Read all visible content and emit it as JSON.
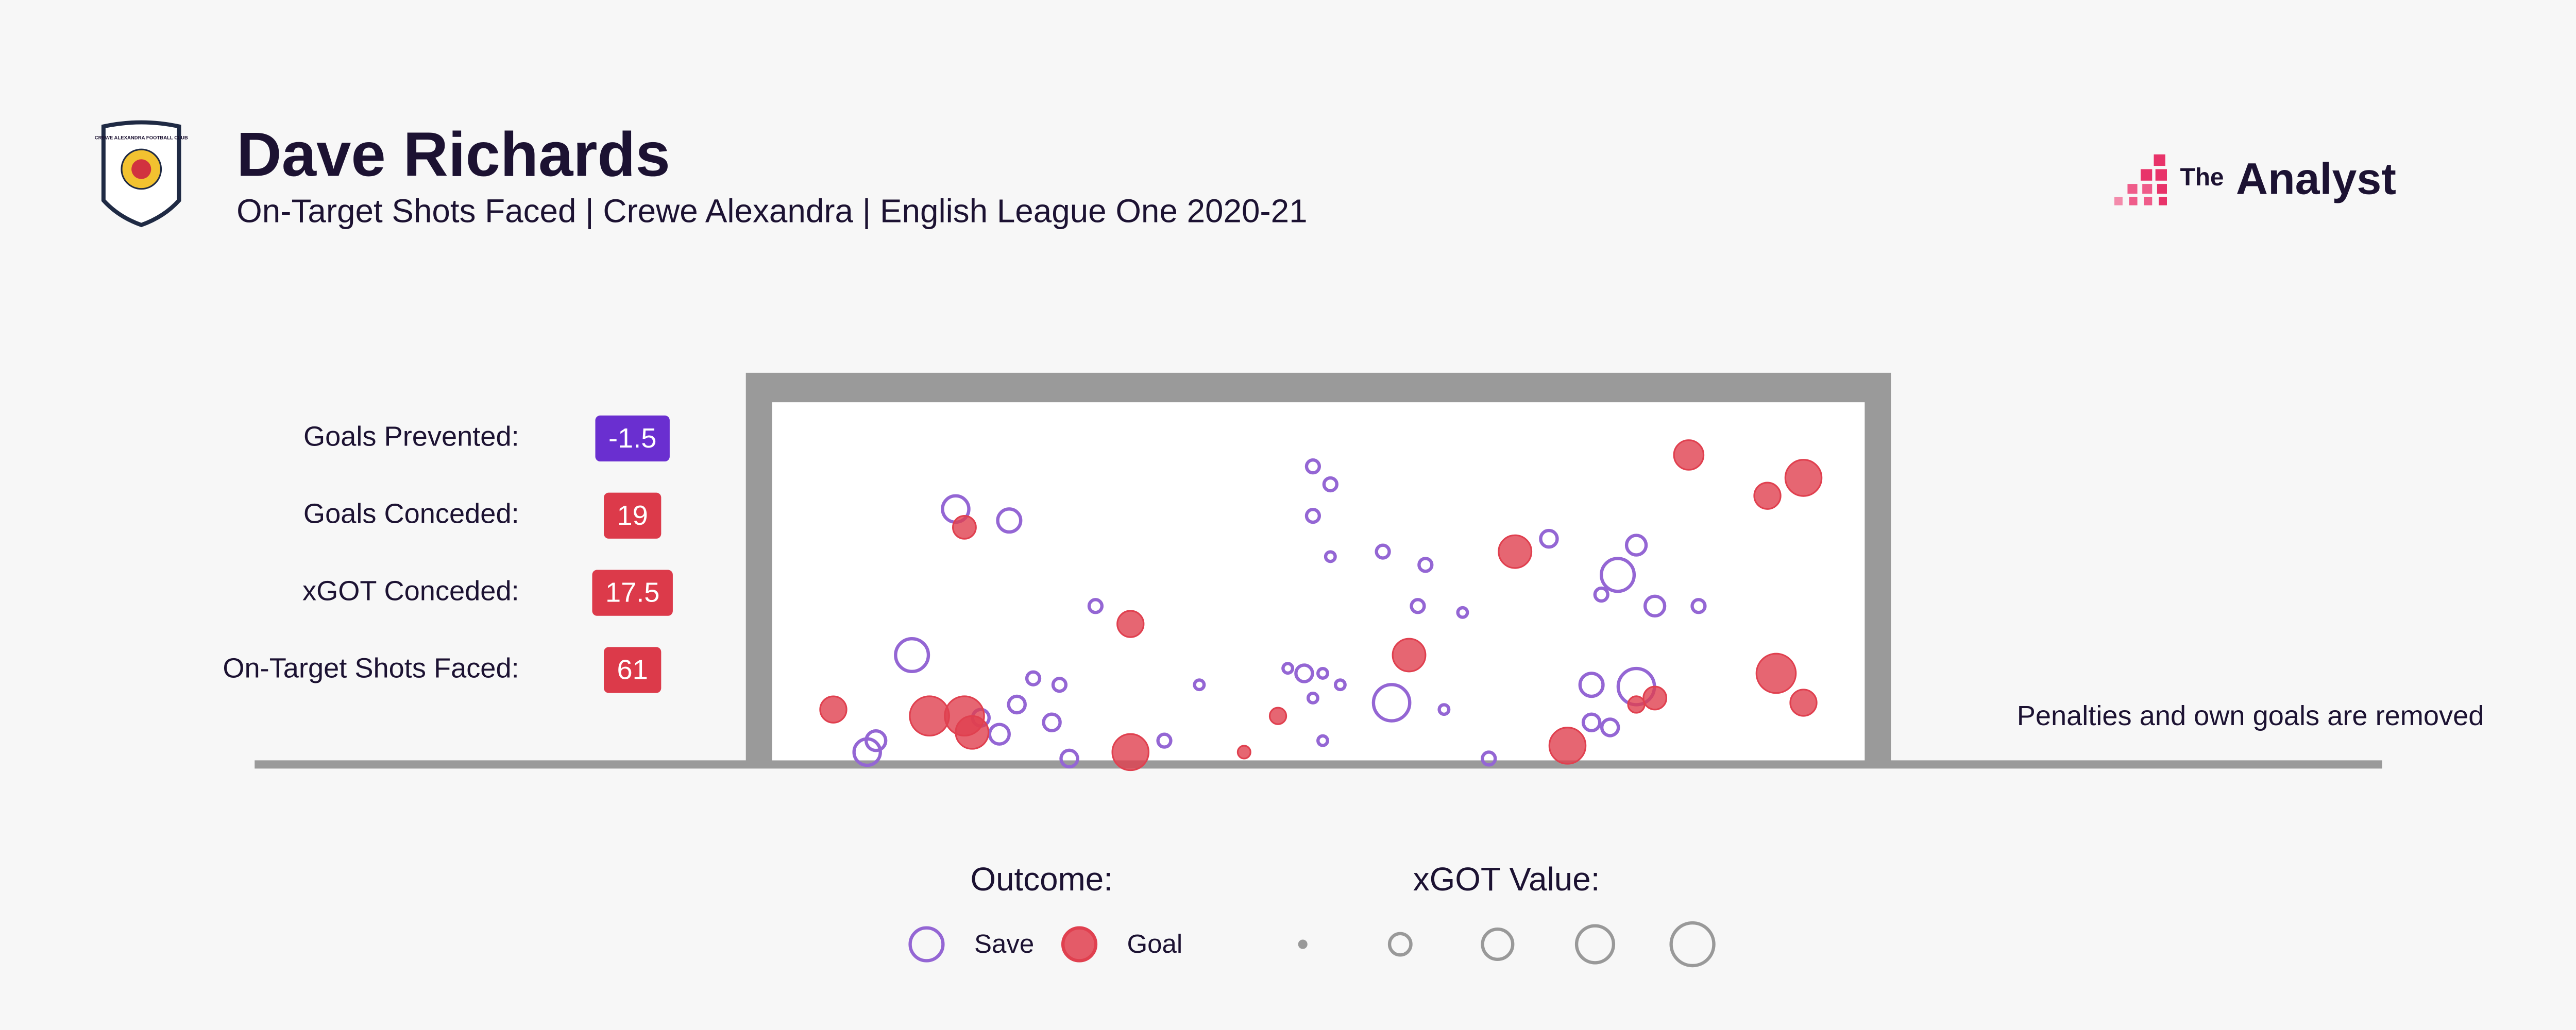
{
  "chart_data": {
    "type": "scatter",
    "title": "Dave Richards",
    "subtitle": "On-Target Shots Faced | Crewe Alexandra | English League One 2020-21",
    "crest_text": "CREWE ALEXANDRA FOOTBALL CLUB",
    "brand_prefix": "The",
    "brand_name": "Analyst",
    "note": "Penalties and own goals are removed",
    "stats": [
      {
        "label": "Goals Prevented:",
        "value": -1.5,
        "color": "#6a2fd0"
      },
      {
        "label": "Goals Conceded:",
        "value": 19,
        "color": "#dc3a4a"
      },
      {
        "label": "xGOT Conceded:",
        "value": 17.5,
        "color": "#dc3a4a"
      },
      {
        "label": "On-Target Shots Faced:",
        "value": 61,
        "color": "#dc3a4a"
      }
    ],
    "outcome_legend_title": "Outcome:",
    "size_legend_title": "xGOT Value:",
    "size_legend_values": [
      0.02,
      0.25,
      0.5,
      0.75,
      1.0
    ],
    "xlim": [
      0,
      100
    ],
    "ylim": [
      0,
      100
    ],
    "series": [
      {
        "name": "Save",
        "color": "#9466d4",
        "x": [
          16.8,
          21.7,
          49.5,
          51.1,
          49.5,
          51.1,
          55.9,
          59.8,
          71.1,
          79.1,
          77.4,
          75.9,
          80.8,
          84.8,
          59.1,
          63.2,
          29.6,
          12.8,
          23.9,
          26.3,
          22.4,
          25.6,
          19.1,
          20.8,
          9.5,
          8.7,
          27.2,
          35.9,
          39.1,
          47.2,
          48.7,
          50.4,
          52.0,
          49.5,
          56.7,
          61.5,
          50.4,
          65.6,
          75.0,
          79.1,
          75.0,
          76.7
        ],
        "y": [
          70.2,
          67.0,
          82.1,
          77.1,
          68.3,
          56.9,
          58.3,
          54.6,
          61.9,
          60.1,
          51.8,
          46.3,
          43.1,
          43.1,
          43.1,
          41.3,
          43.1,
          29.4,
          22.9,
          21.1,
          15.6,
          10.6,
          11.9,
          7.3,
          5.5,
          2.3,
          0.5,
          5.5,
          21.1,
          25.7,
          24.3,
          24.3,
          21.1,
          17.4,
          16.1,
          14.2,
          5.5,
          0.5,
          21.1,
          20.6,
          10.6,
          9.2
        ],
        "sizes": [
          0.38,
          0.29,
          0.09,
          0.09,
          0.09,
          0.05,
          0.09,
          0.09,
          0.15,
          0.21,
          0.59,
          0.09,
          0.21,
          0.09,
          0.09,
          0.05,
          0.09,
          0.59,
          0.09,
          0.09,
          0.15,
          0.15,
          0.15,
          0.21,
          0.21,
          0.38,
          0.15,
          0.09,
          0.05,
          0.05,
          0.15,
          0.05,
          0.05,
          0.05,
          0.72,
          0.05,
          0.05,
          0.09,
          0.29,
          0.72,
          0.15,
          0.15
        ]
      },
      {
        "name": "Goal",
        "color": "#e0404f",
        "x": [
          83.9,
          94.4,
          91.1,
          17.6,
          68.0,
          32.8,
          58.3,
          91.9,
          94.4,
          80.8,
          79.1,
          5.6,
          14.4,
          17.6,
          18.3,
          46.3,
          43.2,
          32.8,
          72.8
        ],
        "y": [
          85.3,
          78.9,
          73.9,
          65.1,
          58.3,
          38.1,
          29.4,
          24.3,
          16.1,
          17.4,
          15.6,
          14.2,
          12.4,
          12.4,
          7.8,
          12.4,
          2.3,
          2.3,
          4.1
        ],
        "sizes": [
          0.48,
          0.72,
          0.38,
          0.29,
          0.59,
          0.38,
          0.59,
          0.85,
          0.38,
          0.29,
          0.15,
          0.38,
          0.85,
          0.85,
          0.59,
          0.15,
          0.09,
          0.72,
          0.72
        ]
      }
    ]
  }
}
